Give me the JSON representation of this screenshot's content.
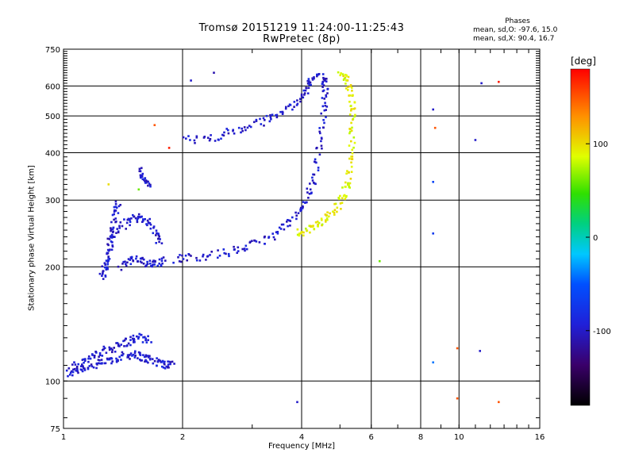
{
  "chart_data": {
    "type": "scatter",
    "title": "Tromsø 20151219 11:24:00-11:25:43",
    "subtitle": "RwPretec (8p)",
    "xlabel": "Frequency [MHz]",
    "ylabel": "Stationary phase Virtual Height [km]",
    "x_scale": "log",
    "y_scale": "log",
    "xlim": [
      1,
      16
    ],
    "ylim": [
      75,
      750
    ],
    "x_ticks": [
      1,
      2,
      4,
      6,
      8,
      10,
      16
    ],
    "x_ticklabels": [
      "1",
      "2",
      "4",
      "6",
      "8",
      "10",
      "16"
    ],
    "y_ticks": [
      75,
      100,
      200,
      300,
      400,
      500,
      600,
      750
    ],
    "y_ticklabels": [
      "75",
      "100",
      "200",
      "300",
      "400",
      "500",
      "600",
      "750"
    ],
    "grid": true,
    "phases": {
      "title": "Phases",
      "line_o": "mean, sd,O: -97.6, 15.0",
      "line_x": "mean, sd,X:  90.4, 16.7"
    },
    "colorbar": {
      "unit": "[deg]",
      "range": [
        -180,
        180
      ],
      "ticks": [
        100,
        0,
        -100
      ],
      "ticklabels": [
        "100",
        "0",
        "-100"
      ]
    },
    "series": [
      {
        "mode": "O",
        "phase_mean": -97.6,
        "traces": [
          [
            [
              1.02,
              104
            ],
            [
              1.1,
              108
            ],
            [
              1.2,
              110
            ],
            [
              1.3,
              113
            ],
            [
              1.4,
              116
            ],
            [
              1.5,
              118
            ],
            [
              1.6,
              115
            ],
            [
              1.7,
              113
            ],
            [
              1.8,
              111
            ],
            [
              1.9,
              110
            ]
          ],
          [
            [
              1.05,
              110
            ],
            [
              1.15,
              114
            ],
            [
              1.25,
              119
            ],
            [
              1.35,
              123
            ],
            [
              1.45,
              127
            ],
            [
              1.55,
              130
            ],
            [
              1.65,
              128
            ]
          ],
          [
            [
              1.25,
              190
            ],
            [
              1.28,
              200
            ],
            [
              1.3,
              215
            ],
            [
              1.32,
              240
            ],
            [
              1.35,
              270
            ],
            [
              1.38,
              300
            ]
          ],
          [
            [
              1.3,
              230
            ],
            [
              1.4,
              255
            ],
            [
              1.5,
              270
            ],
            [
              1.6,
              268
            ],
            [
              1.7,
              250
            ],
            [
              1.75,
              230
            ]
          ],
          [
            [
              1.4,
              200
            ],
            [
              1.5,
              210
            ],
            [
              1.6,
              205
            ],
            [
              1.7,
              205
            ],
            [
              1.8,
              208
            ]
          ],
          [
            [
              1.9,
              210
            ],
            [
              2.2,
              213
            ],
            [
              2.6,
              218
            ],
            [
              3.0,
              228
            ],
            [
              3.4,
              242
            ],
            [
              3.8,
              265
            ],
            [
              4.1,
              295
            ],
            [
              4.3,
              340
            ],
            [
              4.45,
              420
            ],
            [
              4.55,
              520
            ],
            [
              4.6,
              600
            ],
            [
              4.55,
              640
            ]
          ],
          [
            [
              2.0,
              430
            ],
            [
              2.4,
              440
            ],
            [
              2.8,
              460
            ],
            [
              3.2,
              485
            ],
            [
              3.6,
              515
            ],
            [
              4.0,
              560
            ],
            [
              4.2,
              610
            ],
            [
              4.4,
              645
            ]
          ],
          [
            [
              1.55,
              360
            ],
            [
              1.6,
              345
            ],
            [
              1.65,
              320
            ]
          ]
        ]
      },
      {
        "mode": "X",
        "phase_mean": 90.4,
        "traces": [
          [
            [
              3.9,
              245
            ],
            [
              4.2,
              252
            ],
            [
              4.5,
              262
            ],
            [
              4.8,
              278
            ],
            [
              5.1,
              305
            ],
            [
              5.25,
              340
            ],
            [
              5.35,
              400
            ],
            [
              5.4,
              480
            ],
            [
              5.35,
              560
            ],
            [
              5.2,
              620
            ],
            [
              5.0,
              640
            ]
          ]
        ]
      }
    ],
    "isolated_points": [
      {
        "x": 2.4,
        "y": 650,
        "phase": -110
      },
      {
        "x": 2.1,
        "y": 620,
        "phase": -100
      },
      {
        "x": 3.9,
        "y": 88,
        "phase": -100
      },
      {
        "x": 6.3,
        "y": 207,
        "phase": 60
      },
      {
        "x": 8.6,
        "y": 520,
        "phase": -100
      },
      {
        "x": 8.7,
        "y": 465,
        "phase": 150
      },
      {
        "x": 8.6,
        "y": 335,
        "phase": -60
      },
      {
        "x": 8.6,
        "y": 245,
        "phase": -70
      },
      {
        "x": 8.6,
        "y": 112,
        "phase": -40
      },
      {
        "x": 9.9,
        "y": 122,
        "phase": 150
      },
      {
        "x": 9.9,
        "y": 90,
        "phase": 150
      },
      {
        "x": 11.3,
        "y": 120,
        "phase": -100
      },
      {
        "x": 11.4,
        "y": 610,
        "phase": -100
      },
      {
        "x": 12.6,
        "y": 615,
        "phase": 170
      },
      {
        "x": 12.6,
        "y": 88,
        "phase": 150
      },
      {
        "x": 11.0,
        "y": 432,
        "phase": -100
      },
      {
        "x": 1.7,
        "y": 473,
        "phase": 150
      },
      {
        "x": 1.85,
        "y": 412,
        "phase": 170
      },
      {
        "x": 1.55,
        "y": 320,
        "phase": 60
      },
      {
        "x": 1.3,
        "y": 330,
        "phase": 100
      }
    ]
  }
}
